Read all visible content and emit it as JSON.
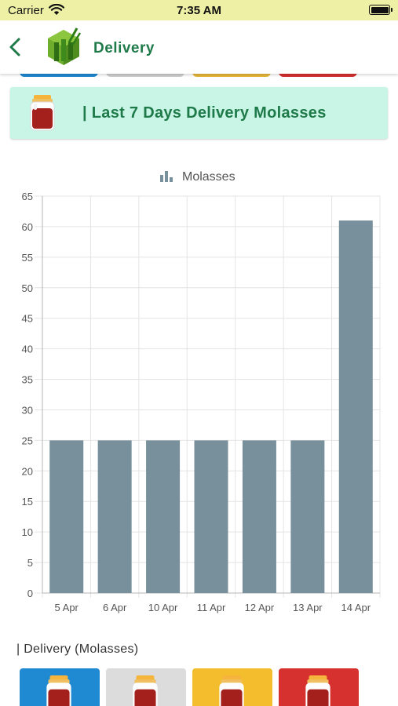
{
  "status_bar": {
    "carrier": "Carrier",
    "time": "7:35 AM"
  },
  "header": {
    "title": "Delivery",
    "back_icon": "chevron-left-icon",
    "logo_icon": "sugarcane-hexagon-logo"
  },
  "section": {
    "title": "| Last 7 Days Delivery Molasses",
    "icon": "molasses-jar-icon"
  },
  "chart_data": {
    "type": "bar",
    "legend": "Molasses",
    "legend_placement": "top-center",
    "categories": [
      "5 Apr",
      "6 Apr",
      "10 Apr",
      "11 Apr",
      "12 Apr",
      "13 Apr",
      "14 Apr"
    ],
    "series": [
      {
        "name": "Molasses",
        "values": [
          25,
          25,
          25,
          25,
          25,
          25,
          61
        ]
      }
    ],
    "ylim": [
      0,
      65
    ],
    "yticks": [
      "0",
      "5",
      "10",
      "15",
      "20",
      "25",
      "30",
      "35",
      "40",
      "45",
      "50",
      "55",
      "60",
      "65"
    ],
    "grid": true,
    "bar_color": "#78909c"
  },
  "list_label": "| Delivery (Molasses)",
  "colors": {
    "status_bar_bg": "#eef0a6",
    "accent_green": "#1f7a4a",
    "card_bg": "#c9f5e6",
    "tile_blue": "#1f8ad2",
    "tile_gray": "#dcdcdc",
    "tile_yellow": "#f4bd2d",
    "tile_red": "#d6302f"
  }
}
